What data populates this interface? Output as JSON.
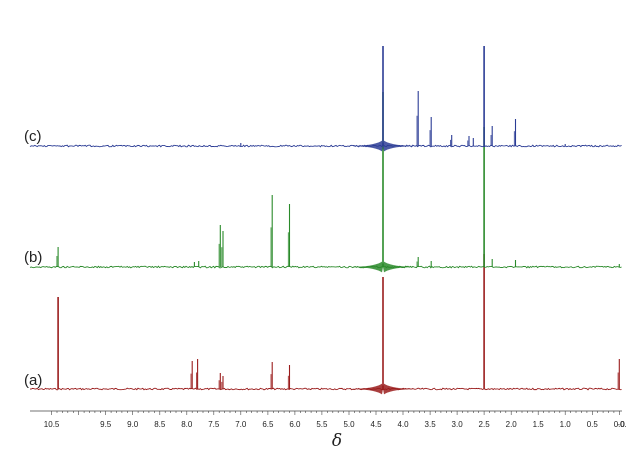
{
  "chart_data": {
    "type": "line",
    "xlabel": "δ",
    "ylabel": "",
    "xlim": [
      10.9,
      -0.05
    ],
    "x_reversed": true,
    "grid": false,
    "tick_labels": [
      "10.5",
      "9.5",
      "9.0",
      "8.5",
      "8.0",
      "7.5",
      "7.0",
      "6.5",
      "6.0",
      "5.5",
      "5.0",
      "4.5",
      "4.0",
      "3.5",
      "3.0",
      "2.5",
      "2.0",
      "1.5",
      "1.0",
      "0.5",
      "0.0",
      "-0."
    ],
    "tick_values": [
      10.5,
      9.5,
      9.0,
      8.5,
      8.0,
      7.5,
      7.0,
      6.5,
      6.0,
      5.5,
      5.0,
      4.5,
      4.0,
      3.5,
      3.0,
      2.5,
      2.0,
      1.5,
      1.0,
      0.5,
      0.0,
      -0.05
    ],
    "series": [
      {
        "name": "(a)",
        "color": "#9a1c1c",
        "peaks": [
          {
            "x": 10.38,
            "y": 0.92
          },
          {
            "x": 7.9,
            "y": 0.28
          },
          {
            "x": 7.8,
            "y": 0.3
          },
          {
            "x": 7.38,
            "y": 0.16
          },
          {
            "x": 7.33,
            "y": 0.13
          },
          {
            "x": 6.42,
            "y": 0.27
          },
          {
            "x": 6.1,
            "y": 0.24
          },
          {
            "x": 4.37,
            "y": 1.12
          },
          {
            "x": 2.5,
            "y": 1.35
          },
          {
            "x": 0.0,
            "y": 0.3
          }
        ]
      },
      {
        "name": "(b)",
        "color": "#2a8a2a",
        "peaks": [
          {
            "x": 10.38,
            "y": 0.2
          },
          {
            "x": 7.86,
            "y": 0.05
          },
          {
            "x": 7.78,
            "y": 0.06
          },
          {
            "x": 7.38,
            "y": 0.42
          },
          {
            "x": 7.33,
            "y": 0.36
          },
          {
            "x": 6.42,
            "y": 0.72
          },
          {
            "x": 6.1,
            "y": 0.63
          },
          {
            "x": 4.37,
            "y": 1.75
          },
          {
            "x": 3.72,
            "y": 0.1
          },
          {
            "x": 3.48,
            "y": 0.06
          },
          {
            "x": 2.5,
            "y": 1.4
          },
          {
            "x": 2.35,
            "y": 0.08
          },
          {
            "x": 1.92,
            "y": 0.07
          },
          {
            "x": 0.0,
            "y": 0.03
          }
        ]
      },
      {
        "name": "(c)",
        "color": "#2b3c95",
        "peaks": [
          {
            "x": 7.0,
            "y": 0.03
          },
          {
            "x": 4.37,
            "y": 1.0
          },
          {
            "x": 3.72,
            "y": 0.55
          },
          {
            "x": 3.48,
            "y": 0.29
          },
          {
            "x": 3.1,
            "y": 0.11
          },
          {
            "x": 2.78,
            "y": 0.1
          },
          {
            "x": 2.7,
            "y": 0.08
          },
          {
            "x": 2.5,
            "y": 1.0
          },
          {
            "x": 2.35,
            "y": 0.2
          },
          {
            "x": 1.92,
            "y": 0.27
          },
          {
            "x": 1.0,
            "y": 0.02
          }
        ]
      }
    ]
  }
}
